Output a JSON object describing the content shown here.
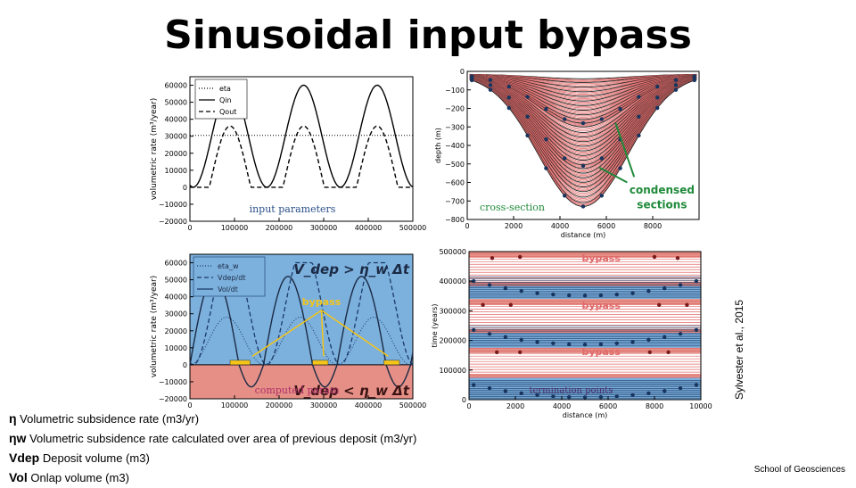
{
  "title": "Sinusoidal input bypass",
  "notes": [
    {
      "symbol": "η",
      "text": " Volumetric subsidence rate (m3/yr)"
    },
    {
      "symbol": "ηw",
      "text": " Volumetric subsidence rate calculated over area of previous deposit (m3/yr)"
    },
    {
      "symbol": "Vdep",
      "text": " Deposit volume (m3)"
    },
    {
      "symbol": "Vol",
      "text": " Onlap volume (m3)"
    }
  ],
  "citation": "Sylvester et al., 2015",
  "footer": "School of Geosciences",
  "colors": {
    "blue": "#7cb0dd",
    "salmon": "#e58f86",
    "yellow": "#f5c518",
    "green": "#1f8a3a",
    "red_line": "#e06a6a"
  },
  "chart_data": [
    {
      "type": "line",
      "panel": "input",
      "xlim": [
        0,
        500000
      ],
      "ylim": [
        -20000,
        65000
      ],
      "xticks": [
        "0",
        "100000",
        "200000",
        "300000",
        "400000",
        "500000"
      ],
      "yticks": [
        "−20000",
        "−10000",
        "0",
        "10000",
        "20000",
        "30000",
        "40000",
        "50000",
        "60000"
      ],
      "ylabel": "volumetric rate (m³/year)",
      "legend": [
        "eta",
        "Qin",
        "Qout"
      ],
      "annotation": "input parameters",
      "series": [
        {
          "name": "eta",
          "style": "dotted",
          "constant": 30500
        },
        {
          "name": "Qin",
          "style": "solid",
          "period": 165000,
          "peak_x": [
            90000,
            255000,
            420000
          ],
          "max": 60000,
          "min": 0
        },
        {
          "name": "Qout",
          "style": "dashed",
          "peak_x": [
            90000,
            255000,
            420000
          ],
          "max": 36000,
          "threshold": 30500
        }
      ]
    },
    {
      "type": "line",
      "panel": "cross-section",
      "xlim": [
        0,
        10000
      ],
      "ylim": [
        -800,
        0
      ],
      "xticks": [
        "0",
        "2000",
        "4000",
        "6000",
        "8000"
      ],
      "yticks": [
        "0",
        "−100",
        "−200",
        "−300",
        "−400",
        "−500",
        "−600",
        "−700",
        "−800"
      ],
      "xlabel": "distance (m)",
      "ylabel": "depth (m)",
      "annotation": "cross-section",
      "callout": [
        "condensed",
        "sections"
      ],
      "profile_depths": [
        40,
        60,
        85,
        110,
        135,
        160,
        185,
        210,
        235,
        260,
        280,
        300,
        330,
        355,
        380,
        405,
        430,
        455,
        480,
        505,
        525,
        550,
        575,
        600,
        625,
        650,
        680,
        710,
        730
      ]
    },
    {
      "type": "line",
      "panel": "computed",
      "xlim": [
        0,
        500000
      ],
      "ylim": [
        -20000,
        65000
      ],
      "xticks": [
        "0",
        "100000",
        "200000",
        "300000",
        "400000",
        "500000"
      ],
      "yticks": [
        "−20000",
        "−10000",
        "0",
        "10000",
        "20000",
        "30000",
        "40000",
        "50000",
        "60000"
      ],
      "ylabel": "volumetric rate (m³/year)",
      "legend": [
        "eta_w",
        "Vdep/dt",
        "Vol/dt"
      ],
      "annotation": "computed param",
      "bypass_label": "bypass",
      "eq_top": "V_dep > η_w Δt",
      "eq_bottom": "V_dep < η_w Δt"
    },
    {
      "type": "scatter",
      "panel": "termination",
      "xlim": [
        0,
        10000
      ],
      "ylim": [
        0,
        500000
      ],
      "xticks": [
        "0",
        "2000",
        "4000",
        "6000",
        "8000",
        "10000"
      ],
      "yticks": [
        "0",
        "100000",
        "200000",
        "300000",
        "400000",
        "500000"
      ],
      "xlabel": "distance (m)",
      "ylabel": "time (years)",
      "annotation": "termination points",
      "bypass_label": "bypass",
      "bypass_bands": [
        [
          385000,
          500000
        ],
        [
          225000,
          340000
        ],
        [
          75000,
          175000
        ]
      ],
      "bypass_points": [
        [
          1000,
          478000
        ],
        [
          2200,
          482000
        ],
        [
          8000,
          482000
        ],
        [
          9000,
          478000
        ],
        [
          600,
          320000
        ],
        [
          1800,
          320000
        ],
        [
          8200,
          320000
        ],
        [
          9400,
          320000
        ],
        [
          1200,
          160000
        ],
        [
          2200,
          160000
        ],
        [
          7800,
          160000
        ],
        [
          8600,
          160000
        ]
      ]
    }
  ]
}
